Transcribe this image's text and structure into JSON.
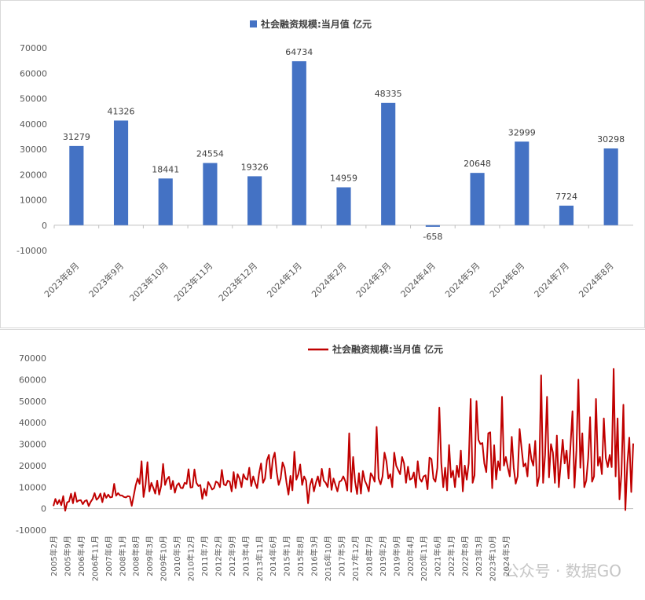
{
  "chart_data": [
    {
      "type": "bar",
      "title": "社会融资规模:当月值 亿元",
      "legend": "社会融资规模:当月值 亿元",
      "legend_placement": "top",
      "color": "#4472C4",
      "categories": [
        "2023年8月",
        "2023年9月",
        "2023年10月",
        "2023年11月",
        "2023年12月",
        "2024年1月",
        "2024年2月",
        "2024年3月",
        "2024年4月",
        "2024年5月",
        "2024年6月",
        "2024年7月",
        "2024年8月"
      ],
      "values": [
        31279,
        41326,
        18441,
        24554,
        19326,
        64734,
        14959,
        48335,
        -658,
        20648,
        32999,
        7724,
        30298
      ],
      "data_labels": [
        "31279",
        "41326",
        "18441",
        "24554",
        "19326",
        "64734",
        "14959",
        "48335",
        "-658",
        "20648",
        "32999",
        "7724",
        "30298"
      ],
      "yticks": [
        "70000",
        "60000",
        "50000",
        "40000",
        "30000",
        "20000",
        "10000",
        "0",
        "-10000"
      ],
      "ylim": [
        -10000,
        70000
      ],
      "grid": false
    },
    {
      "type": "line",
      "title": "社会融资规模:当月值 亿元",
      "legend": "社会融资规模:当月值 亿元",
      "legend_placement": "top",
      "color": "#C00000",
      "xticks": [
        "2005年2月",
        "2005年9月",
        "2006年4月",
        "2006年11月",
        "2007年6月",
        "2008年1月",
        "2008年8月",
        "2009年3月",
        "2009年10月",
        "2010年5月",
        "2010年12月",
        "2011年7月",
        "2012年2月",
        "2012年9月",
        "2013年4月",
        "2013年11月",
        "2014年6月",
        "2015年1月",
        "2015年8月",
        "2016年3月",
        "2016年10月",
        "2017年5月",
        "2017年12月",
        "2018年7月",
        "2019年2月",
        "2019年9月",
        "2020年4月",
        "2020年11月",
        "2021年6月",
        "2022年1月",
        "2022年8月",
        "2023年3月",
        "2023年10月",
        "2024年5月"
      ],
      "x_start": "2005-02",
      "x_end": "2024-08",
      "values": [
        1200,
        4500,
        2100,
        4000,
        1600,
        5800,
        -1000,
        2900,
        3300,
        6900,
        2500,
        7500,
        3200,
        3800,
        3900,
        2100,
        3500,
        3900,
        1200,
        3100,
        4500,
        7200,
        4100,
        5000,
        7000,
        3000,
        7200,
        5000,
        6500,
        5200,
        5400,
        11500,
        6000,
        7200,
        6200,
        6100,
        5400,
        5200,
        5800,
        5600,
        1300,
        6000,
        10800,
        14000,
        11500,
        22000,
        5400,
        11000,
        21600,
        8000,
        12000,
        9600,
        7000,
        13000,
        6500,
        10500,
        20800,
        11000,
        13700,
        14800,
        9000,
        12900,
        7400,
        10800,
        11800,
        9600,
        9500,
        12000,
        11500,
        18300,
        9800,
        10000,
        18200,
        12000,
        10500,
        11000,
        4500,
        9200,
        6000,
        12400,
        10800,
        8900,
        9500,
        12600,
        12000,
        10000,
        18000,
        11300,
        10800,
        13000,
        12500,
        8000,
        17000,
        9500,
        16000,
        14000,
        10000,
        16000,
        14000,
        13500,
        19000,
        10500,
        15000,
        12000,
        9500,
        16500,
        21000,
        12000,
        14000,
        22500,
        25000,
        14000,
        23000,
        26000,
        17000,
        11000,
        14000,
        21500,
        19000,
        12000,
        6500,
        15200,
        8500,
        26500,
        13500,
        16000,
        20500,
        11000,
        15000,
        13000,
        2500,
        10900,
        13800,
        8000,
        12000,
        15000,
        10500,
        18500,
        13000,
        12000,
        10000,
        18600,
        8700,
        14000,
        11000,
        8000,
        12500,
        13000,
        15000,
        12800,
        8400,
        35000,
        7800,
        24000,
        12500,
        6800,
        16500,
        7000,
        17500,
        13000,
        11000,
        8000,
        16500,
        15000,
        12500,
        38000,
        14000,
        11300,
        15000,
        26000,
        22000,
        14000,
        16000,
        10000,
        26000,
        20000,
        18000,
        16000,
        24000,
        21000,
        12000,
        19500,
        13500,
        14000,
        16800,
        9800,
        22000,
        14000,
        12500,
        15000,
        15500,
        9000,
        23700,
        23000,
        14000,
        12500,
        19000,
        47000,
        21000,
        10000,
        19000,
        8500,
        29600,
        14500,
        17600,
        10000,
        20000,
        14700,
        27000,
        8000,
        20000,
        13500,
        21000,
        51000,
        12000,
        15500,
        50000,
        32000,
        30000,
        30500,
        21000,
        17000,
        35000,
        35500,
        9500,
        29500,
        13600,
        22000,
        17800,
        52000,
        20000,
        24000,
        19000,
        15000,
        33400,
        19000,
        11600,
        15000,
        37000,
        28000,
        19600,
        21000,
        15000,
        30000,
        23000,
        20000,
        31500,
        10500,
        15000,
        62000,
        12000,
        25000,
        52000,
        14500,
        30000,
        26000,
        12000,
        34000,
        10000,
        21000,
        32000,
        21000,
        27000,
        14000,
        29400,
        45300,
        9800,
        27000,
        60000,
        19000,
        35000,
        10000,
        13000,
        23500,
        42500,
        12500,
        15000,
        51000,
        20000,
        24000,
        16000,
        42000,
        23500,
        19300,
        25000,
        19300,
        65000,
        15000,
        42000,
        4300,
        16000,
        48300,
        -700,
        20600,
        33000,
        7700,
        30300
      ],
      "yticks": [
        "70000",
        "60000",
        "50000",
        "40000",
        "30000",
        "20000",
        "10000",
        "0",
        "-10000"
      ],
      "ylim": [
        -10000,
        70000
      ],
      "grid": false
    }
  ],
  "watermark": "公众号 · 数据GO"
}
